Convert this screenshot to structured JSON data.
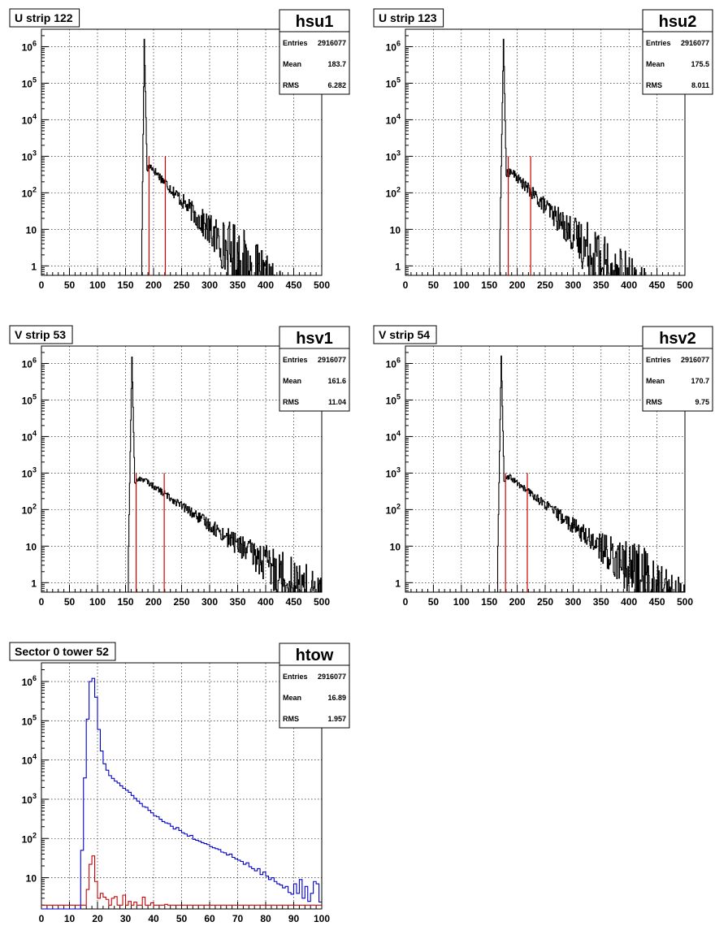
{
  "chart_data": [
    {
      "type": "line",
      "title": "U strip 122",
      "stats": {
        "name": "hsu1",
        "entries_label": "Entries",
        "entries": "2916077",
        "mean_label": "Mean",
        "mean": "183.7",
        "rms_label": "RMS",
        "rms": "6.282"
      },
      "xlim": [
        0,
        500
      ],
      "xticks": [
        "0",
        "50",
        "100",
        "150",
        "200",
        "250",
        "300",
        "350",
        "400",
        "450",
        "500"
      ],
      "ylog": true,
      "ylim": [
        0.55,
        3000000
      ],
      "ytick_labels": [
        {
          "v": 1,
          "base": "1",
          "exp": ""
        },
        {
          "v": 10,
          "base": "10",
          "exp": ""
        },
        {
          "v": 100,
          "base": "10",
          "exp": "2"
        },
        {
          "v": 1000,
          "base": "10",
          "exp": "3"
        },
        {
          "v": 10000,
          "base": "10",
          "exp": "4"
        },
        {
          "v": 100000,
          "base": "10",
          "exp": "5"
        },
        {
          "v": 1000000,
          "base": "10",
          "exp": "6"
        }
      ],
      "grid": true,
      "series": [
        {
          "color": "#000000",
          "style": "spectrum",
          "spectrum": {
            "ped_start": 179,
            "peak_x": 183,
            "peak": 1600000,
            "ped_end": 188,
            "plateau": 420,
            "knee": 200,
            "slope": 0.0167,
            "tail_end": 500,
            "noise": 0.35
          }
        }
      ],
      "vlines": [
        {
          "x": 192,
          "y_top": 1000,
          "color": "#cc0000"
        },
        {
          "x": 221,
          "y_top": 1000,
          "color": "#cc0000"
        }
      ]
    },
    {
      "type": "line",
      "title": "U strip 123",
      "stats": {
        "name": "hsu2",
        "entries_label": "Entries",
        "entries": "2916077",
        "mean_label": "Mean",
        "mean": "175.5",
        "rms_label": "RMS",
        "rms": "8.011"
      },
      "xlim": [
        0,
        500
      ],
      "xticks": [
        "0",
        "50",
        "100",
        "150",
        "200",
        "250",
        "300",
        "350",
        "400",
        "450",
        "500"
      ],
      "ylog": true,
      "ylim": [
        0.55,
        3000000
      ],
      "ytick_labels": [
        {
          "v": 1,
          "base": "1",
          "exp": ""
        },
        {
          "v": 10,
          "base": "10",
          "exp": ""
        },
        {
          "v": 100,
          "base": "10",
          "exp": "2"
        },
        {
          "v": 1000,
          "base": "10",
          "exp": "3"
        },
        {
          "v": 10000,
          "base": "10",
          "exp": "4"
        },
        {
          "v": 100000,
          "base": "10",
          "exp": "5"
        },
        {
          "v": 1000000,
          "base": "10",
          "exp": "6"
        }
      ],
      "grid": true,
      "series": [
        {
          "color": "#000000",
          "style": "spectrum",
          "spectrum": {
            "ped_start": 169,
            "peak_x": 175,
            "peak": 1600000,
            "ped_end": 180,
            "plateau": 300,
            "knee": 195,
            "slope": 0.0155,
            "tail_end": 500,
            "noise": 0.35
          }
        }
      ],
      "vlines": [
        {
          "x": 184,
          "y_top": 1000,
          "color": "#cc0000"
        },
        {
          "x": 224,
          "y_top": 1000,
          "color": "#cc0000"
        }
      ]
    },
    {
      "type": "line",
      "title": "V strip 53",
      "stats": {
        "name": "hsv1",
        "entries_label": "Entries",
        "entries": "2916077",
        "mean_label": "Mean",
        "mean": "161.6",
        "rms_label": "RMS",
        "rms": "11.04"
      },
      "xlim": [
        0,
        500
      ],
      "xticks": [
        "0",
        "50",
        "100",
        "150",
        "200",
        "250",
        "300",
        "350",
        "400",
        "450",
        "500"
      ],
      "ylog": true,
      "ylim": [
        0.55,
        3000000
      ],
      "ytick_labels": [
        {
          "v": 1,
          "base": "1",
          "exp": ""
        },
        {
          "v": 10,
          "base": "10",
          "exp": ""
        },
        {
          "v": 100,
          "base": "10",
          "exp": "2"
        },
        {
          "v": 1000,
          "base": "10",
          "exp": "3"
        },
        {
          "v": 10000,
          "base": "10",
          "exp": "4"
        },
        {
          "v": 100000,
          "base": "10",
          "exp": "5"
        },
        {
          "v": 1000000,
          "base": "10",
          "exp": "6"
        }
      ],
      "grid": true,
      "series": [
        {
          "color": "#000000",
          "style": "spectrum",
          "spectrum": {
            "ped_start": 155,
            "peak_x": 161,
            "peak": 1500000,
            "ped_end": 166,
            "plateau": 550,
            "knee": 190,
            "slope": 0.0106,
            "tail_end": 500,
            "noise": 0.25
          }
        }
      ],
      "vlines": [
        {
          "x": 169,
          "y_top": 1000,
          "color": "#cc0000"
        },
        {
          "x": 219,
          "y_top": 1000,
          "color": "#cc0000"
        }
      ]
    },
    {
      "type": "line",
      "title": "V strip 54",
      "stats": {
        "name": "hsv2",
        "entries_label": "Entries",
        "entries": "2916077",
        "mean_label": "Mean",
        "mean": "170.7",
        "rms_label": "RMS",
        "rms": "9.75"
      },
      "xlim": [
        0,
        500
      ],
      "xticks": [
        "0",
        "50",
        "100",
        "150",
        "200",
        "250",
        "300",
        "350",
        "400",
        "450",
        "500"
      ],
      "ylog": true,
      "ylim": [
        0.55,
        3000000
      ],
      "ytick_labels": [
        {
          "v": 1,
          "base": "1",
          "exp": ""
        },
        {
          "v": 10,
          "base": "10",
          "exp": ""
        },
        {
          "v": 100,
          "base": "10",
          "exp": "2"
        },
        {
          "v": 1000,
          "base": "10",
          "exp": "3"
        },
        {
          "v": 10000,
          "base": "10",
          "exp": "4"
        },
        {
          "v": 100000,
          "base": "10",
          "exp": "5"
        },
        {
          "v": 1000000,
          "base": "10",
          "exp": "6"
        }
      ],
      "grid": true,
      "series": [
        {
          "color": "#000000",
          "style": "spectrum",
          "spectrum": {
            "ped_start": 165,
            "peak_x": 171,
            "peak": 1600000,
            "ped_end": 176,
            "plateau": 600,
            "knee": 195,
            "slope": 0.0117,
            "tail_end": 500,
            "noise": 0.3
          }
        }
      ],
      "vlines": [
        {
          "x": 179,
          "y_top": 1000,
          "color": "#cc0000"
        },
        {
          "x": 218,
          "y_top": 1000,
          "color": "#cc0000"
        }
      ]
    },
    {
      "type": "line",
      "title": "Sector 0 tower 52",
      "stats": {
        "name": "htow",
        "entries_label": "Entries",
        "entries": "2916077",
        "mean_label": "Mean",
        "mean": "16.89",
        "rms_label": "RMS",
        "rms": "1.957"
      },
      "xlim": [
        0,
        100
      ],
      "xticks": [
        "0",
        "10",
        "20",
        "30",
        "40",
        "50",
        "60",
        "70",
        "80",
        "90",
        "100"
      ],
      "ylog": true,
      "ylim": [
        1.6,
        3000000
      ],
      "ytick_labels": [
        {
          "v": 10,
          "base": "10",
          "exp": ""
        },
        {
          "v": 100,
          "base": "10",
          "exp": "2"
        },
        {
          "v": 1000,
          "base": "10",
          "exp": "3"
        },
        {
          "v": 10000,
          "base": "10",
          "exp": "4"
        },
        {
          "v": 100000,
          "base": "10",
          "exp": "5"
        },
        {
          "v": 1000000,
          "base": "10",
          "exp": "6"
        }
      ],
      "grid": true,
      "series": [
        {
          "color": "#0000cc",
          "style": "steps",
          "bin_width": 1,
          "x0": 0,
          "values": [
            0,
            0,
            0,
            0,
            0,
            0,
            0,
            0,
            0,
            0,
            0,
            0,
            0,
            0,
            50,
            3500,
            110000,
            1000000,
            1200000,
            400000,
            60000,
            17000,
            8000,
            5500,
            4000,
            3400,
            2900,
            2600,
            2200,
            1900,
            1700,
            1500,
            1250,
            1050,
            900,
            780,
            650,
            620,
            520,
            450,
            380,
            360,
            310,
            270,
            250,
            240,
            205,
            175,
            190,
            160,
            140,
            130,
            115,
            120,
            95,
            90,
            85,
            78,
            74,
            70,
            62,
            58,
            55,
            52,
            45,
            43,
            38,
            40,
            33,
            30,
            28,
            26,
            22,
            24,
            19,
            17,
            15,
            17,
            12,
            14,
            11,
            9,
            10,
            8,
            7,
            6.5,
            5.5,
            6,
            4.2,
            3.8,
            7,
            4,
            9,
            3,
            6,
            2.5,
            4,
            8,
            7,
            2.4
          ]
        },
        {
          "color": "#cc0000",
          "style": "steps",
          "bin_width": 1,
          "x0": 0,
          "values": [
            2,
            2,
            2,
            2,
            2,
            2,
            2,
            2,
            2,
            2,
            2,
            2,
            2,
            2,
            2,
            2,
            5,
            22,
            36,
            8,
            3,
            4,
            3.2,
            2.8,
            2,
            3,
            3.3,
            2,
            2,
            3.6,
            2,
            2.5,
            2,
            2.4,
            2,
            2,
            3.2,
            2,
            2,
            2.3,
            2,
            2,
            2,
            2,
            2.1,
            2,
            2,
            2,
            2,
            2,
            2,
            2,
            2,
            2,
            2,
            2,
            2,
            2,
            2,
            2,
            2,
            2,
            2,
            2,
            2,
            2,
            2,
            2,
            2,
            2,
            2,
            2,
            2,
            2,
            2,
            2,
            2,
            2,
            2,
            2,
            2,
            2,
            2,
            2,
            2,
            2,
            2,
            2,
            2,
            2,
            2,
            2,
            2,
            2,
            2,
            2,
            2,
            2,
            2,
            2
          ]
        }
      ],
      "vlines": []
    }
  ]
}
